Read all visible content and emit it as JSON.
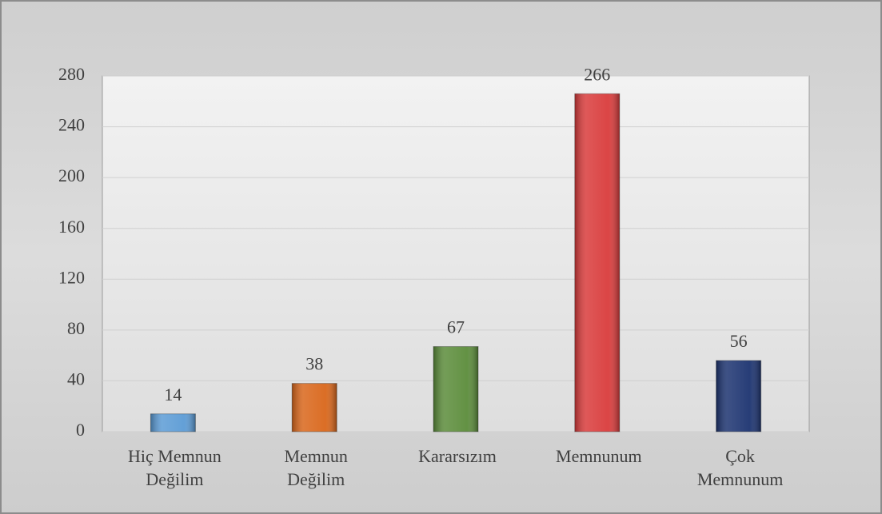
{
  "chart_data": {
    "type": "bar",
    "categories": [
      "Hiç Memnun Değilim",
      "Memnun Değilim",
      "Kararsızım",
      "Memnunum",
      "Çok Memnunum"
    ],
    "values": [
      14,
      38,
      67,
      266,
      56
    ],
    "colors": [
      "#5b9bd5",
      "#d9661a",
      "#5b8c3a",
      "#d93b3b",
      "#1c3370"
    ],
    "ylim": [
      0,
      280
    ],
    "yticks": [
      0,
      40,
      80,
      120,
      160,
      200,
      240,
      280
    ],
    "grid": true
  }
}
